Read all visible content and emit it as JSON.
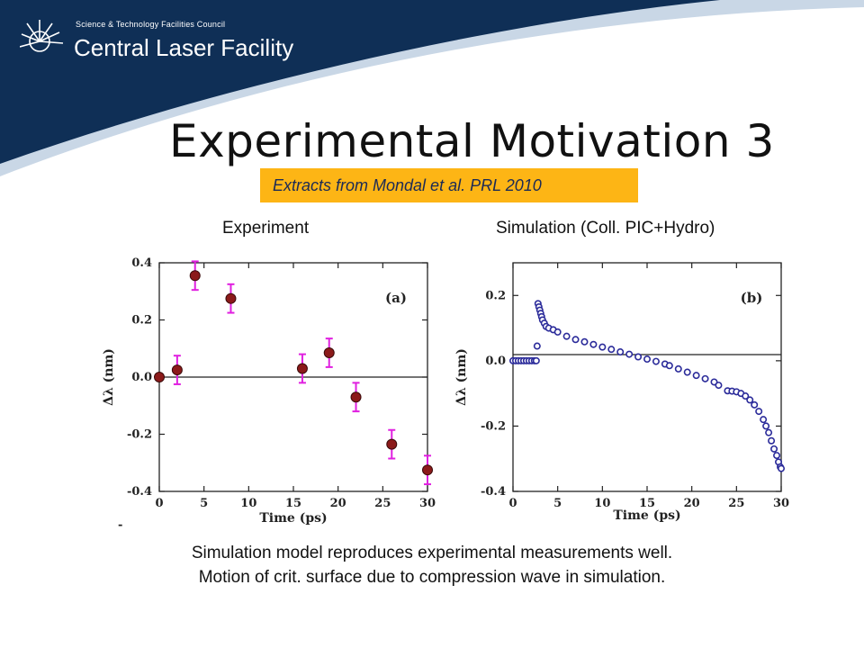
{
  "header": {
    "council": "Science & Technology Facilities Council",
    "facility": "Central Laser Facility",
    "logo_icon": "sunburst-icon",
    "colors": {
      "banner_navy": "#0f2f56",
      "banner_light": "#c9d7e6",
      "accent": "#fdb515"
    }
  },
  "slide": {
    "title": "Experimental Motivation 3",
    "citation": "Extracts from Mondal et al. PRL 2010",
    "left_heading": "Experiment",
    "right_heading": "Simulation (Coll. PIC+Hydro)",
    "caption_lines": [
      "Simulation model reproduces experimental measurements well.",
      "Motion of crit. surface due to compression wave in simulation."
    ]
  },
  "chart_data": [
    {
      "type": "scatter",
      "panel_label": "(a)",
      "xlabel": "Time (ps)",
      "ylabel": "Δλ (nm)",
      "xlim": [
        0,
        30
      ],
      "ylim": [
        -0.4,
        0.4
      ],
      "xticks": [
        "0",
        "5",
        "10",
        "15",
        "20",
        "25",
        "30"
      ],
      "yticks": [
        "-0.4",
        "-0.2",
        "0.0",
        "0.2",
        "0.4"
      ],
      "zero_line": true,
      "colors": {
        "marker": "#8b1a1a",
        "errorbar": "#e020e0"
      },
      "x": [
        0,
        2,
        4,
        8,
        16,
        19,
        22,
        26,
        30
      ],
      "y": [
        0.0,
        0.025,
        0.355,
        0.275,
        0.03,
        0.085,
        -0.07,
        -0.235,
        -0.325
      ],
      "yerr": [
        0.0,
        0.05,
        0.05,
        0.05,
        0.05,
        0.05,
        0.05,
        0.05,
        0.05
      ]
    },
    {
      "type": "scatter",
      "panel_label": "(b)",
      "xlabel": "Time (ps)",
      "ylabel": "Δλ (nm)",
      "xlim": [
        0,
        30
      ],
      "ylim": [
        -0.4,
        0.3
      ],
      "xticks": [
        "0",
        "5",
        "10",
        "15",
        "20",
        "25",
        "30"
      ],
      "yticks": [
        "-0.4",
        "-0.2",
        "0.0",
        "0.2"
      ],
      "zero_line": true,
      "colors": {
        "marker": "#2b2b9a"
      },
      "x": [
        0.0,
        0.3,
        0.6,
        0.9,
        1.2,
        1.5,
        1.8,
        2.1,
        2.4,
        2.6,
        2.7,
        2.8,
        2.9,
        3.0,
        3.1,
        3.2,
        3.3,
        3.5,
        3.7,
        4.0,
        4.5,
        5.0,
        6.0,
        7.0,
        8.0,
        9.0,
        10.0,
        11.0,
        12.0,
        13.0,
        14.0,
        15.0,
        16.0,
        17.0,
        17.5,
        18.5,
        19.5,
        20.5,
        21.5,
        22.5,
        23.0,
        24.0,
        24.5,
        25.0,
        25.5,
        26.0,
        26.5,
        27.0,
        27.5,
        28.0,
        28.3,
        28.6,
        28.9,
        29.2,
        29.5,
        29.7,
        29.9,
        30.0
      ],
      "y": [
        0.0,
        0.0,
        0.0,
        0.0,
        0.0,
        0.0,
        0.0,
        0.0,
        0.0,
        0.0,
        0.045,
        0.175,
        0.165,
        0.155,
        0.145,
        0.135,
        0.125,
        0.115,
        0.105,
        0.1,
        0.095,
        0.088,
        0.075,
        0.065,
        0.058,
        0.05,
        0.042,
        0.035,
        0.027,
        0.02,
        0.012,
        0.005,
        -0.002,
        -0.01,
        -0.015,
        -0.025,
        -0.035,
        -0.045,
        -0.055,
        -0.065,
        -0.075,
        -0.092,
        -0.093,
        -0.095,
        -0.1,
        -0.108,
        -0.12,
        -0.135,
        -0.155,
        -0.18,
        -0.2,
        -0.22,
        -0.245,
        -0.27,
        -0.29,
        -0.31,
        -0.325,
        -0.33
      ]
    }
  ],
  "footer_fragment": "-"
}
